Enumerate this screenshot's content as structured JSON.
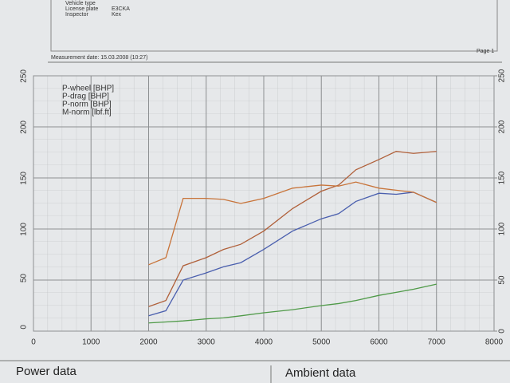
{
  "header": {
    "fields": [
      {
        "label": "Vehicle type",
        "value": null
      },
      {
        "label": "License plate",
        "value": "E3CKA"
      },
      {
        "label": "Inspector",
        "value": "Kex"
      }
    ],
    "measurement": "Measurement date: 15.03.2008 (10:27)",
    "page": "Page 1"
  },
  "chart_data": {
    "type": "line",
    "x": [
      2000,
      2300,
      2600,
      3000,
      3300,
      3600,
      4000,
      4500,
      5000,
      5300,
      5600,
      6000,
      6300,
      6600,
      7000
    ],
    "series": [
      {
        "name": "P-wheel [BHP]",
        "color": "#4a5fae",
        "values": [
          15,
          20,
          50,
          57,
          63,
          67,
          80,
          98,
          110,
          115,
          127,
          135,
          134,
          136,
          126
        ]
      },
      {
        "name": "P-drag [BHP]",
        "color": "#4f9a48",
        "values": [
          8,
          9,
          10,
          12,
          13,
          15,
          18,
          21,
          25,
          27,
          30,
          35,
          38,
          41,
          46
        ]
      },
      {
        "name": "P-norm [BHP]",
        "color": "#b0603a",
        "values": [
          24,
          30,
          64,
          72,
          80,
          85,
          98,
          120,
          137,
          143,
          158,
          168,
          176,
          174,
          176
        ]
      },
      {
        "name": "M-norm [lbf.ft]",
        "color": "#c8743a",
        "axis": "y2",
        "values": [
          65,
          72,
          130,
          130,
          129,
          125,
          130,
          140,
          143,
          142,
          146,
          140,
          138,
          136,
          126
        ]
      }
    ],
    "xlim": [
      0,
      8000
    ],
    "xticks": [
      0,
      1000,
      2000,
      3000,
      4000,
      5000,
      6000,
      7000,
      8000
    ],
    "ylim": [
      0,
      250
    ],
    "yticks": [
      0,
      50,
      100,
      150,
      200,
      250
    ],
    "y2lim": [
      0,
      250
    ],
    "y2ticks": [
      0,
      50,
      100,
      150,
      200,
      250
    ],
    "y2color": "#c8743a",
    "grid": true,
    "legend": "upper left"
  },
  "footer": {
    "left": "Power data",
    "right": "Ambient data"
  }
}
